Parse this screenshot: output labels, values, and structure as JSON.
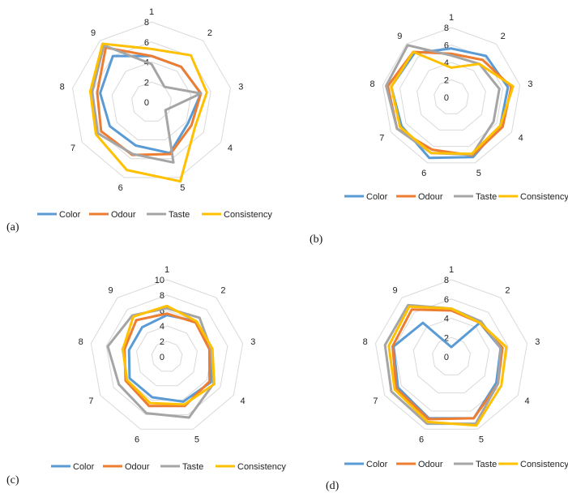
{
  "colors": {
    "Color": "#5b9bd5",
    "Odour": "#ed7d31",
    "Taste": "#a5a5a5",
    "Consistency": "#ffc000",
    "grid": "#d9d9d9"
  },
  "chart_data": [
    {
      "type": "radar",
      "panel_label": "(a)",
      "categories": [
        "1",
        "2",
        "3",
        "4",
        "5",
        "6",
        "7",
        "8",
        "9"
      ],
      "rlim": [
        0,
        8
      ],
      "rticks": [
        "0",
        "2",
        "4",
        "6",
        "8"
      ],
      "legend_position": "bottom",
      "series": [
        {
          "name": "Color",
          "values": [
            4.6,
            4.6,
            5.0,
            4.2,
            5.4,
            4.6,
            4.8,
            5.2,
            6.0
          ]
        },
        {
          "name": "Odour",
          "values": [
            4.6,
            4.6,
            5.0,
            4.6,
            5.5,
            5.6,
            5.8,
            5.5,
            7.1
          ]
        },
        {
          "name": "Taste",
          "values": [
            3.8,
            2.0,
            5.0,
            1.6,
            6.4,
            5.5,
            6.2,
            6.0,
            7.4
          ]
        },
        {
          "name": "Consistency",
          "values": [
            5.3,
            6.1,
            5.6,
            5.0,
            8.4,
            7.2,
            6.4,
            6.2,
            7.6
          ]
        }
      ]
    },
    {
      "type": "radar",
      "panel_label": "(b)",
      "categories": [
        "1",
        "2",
        "3",
        "4",
        "5",
        "6",
        "7",
        "8",
        "9"
      ],
      "rlim": [
        0,
        8
      ],
      "rticks": [
        "0",
        "2",
        "4",
        "6",
        "8"
      ],
      "legend_position": "bottom",
      "series": [
        {
          "name": "Color",
          "values": [
            5.6,
            6.2,
            6.6,
            6.5,
            7.3,
            7.4,
            6.6,
            7.0,
            6.6
          ]
        },
        {
          "name": "Odour",
          "values": [
            5.0,
            5.6,
            7.0,
            6.8,
            7.1,
            6.4,
            7.2,
            7.4,
            6.8
          ]
        },
        {
          "name": "Taste",
          "values": [
            4.8,
            5.0,
            5.6,
            5.6,
            7.0,
            6.8,
            7.2,
            7.6,
            7.8
          ]
        },
        {
          "name": "Consistency",
          "values": [
            3.4,
            5.0,
            7.2,
            6.5,
            6.9,
            6.8,
            6.8,
            7.0,
            6.8
          ]
        }
      ]
    },
    {
      "type": "radar",
      "panel_label": "(c)",
      "categories": [
        "1",
        "2",
        "3",
        "4",
        "5",
        "6",
        "7",
        "8",
        "9"
      ],
      "rlim": [
        0,
        10
      ],
      "rticks": [
        "0",
        "2",
        "4",
        "6",
        "8",
        "10"
      ],
      "legend_position": "bottom",
      "series": [
        {
          "name": "Color",
          "values": [
            5.4,
            6.0,
            5.8,
            6.6,
            6.2,
            5.6,
            5.6,
            5.0,
            5.0
          ]
        },
        {
          "name": "Odour",
          "values": [
            5.6,
            5.8,
            5.6,
            6.4,
            6.8,
            6.8,
            6.2,
            5.6,
            6.2
          ]
        },
        {
          "name": "Taste",
          "values": [
            6.3,
            6.6,
            5.8,
            7.0,
            8.4,
            7.8,
            7.2,
            7.8,
            7.0
          ]
        },
        {
          "name": "Consistency",
          "values": [
            6.6,
            6.0,
            6.0,
            7.1,
            6.6,
            6.4,
            6.0,
            5.8,
            6.8
          ]
        }
      ]
    },
    {
      "type": "radar",
      "panel_label": "(d)",
      "categories": [
        "1",
        "2",
        "3",
        "4",
        "5",
        "6",
        "7",
        "8",
        "9"
      ],
      "rlim": [
        0,
        8
      ],
      "rticks": [
        "0",
        "2",
        "4",
        "6",
        "8"
      ],
      "legend_position": "bottom",
      "series": [
        {
          "name": "Color",
          "values": [
            1.0,
            4.6,
            5.2,
            5.4,
            6.8,
            6.8,
            6.4,
            6.1,
            4.6
          ]
        },
        {
          "name": "Odour",
          "values": [
            4.8,
            4.6,
            5.4,
            5.6,
            6.8,
            6.9,
            6.6,
            6.2,
            6.4
          ]
        },
        {
          "name": "Taste",
          "values": [
            5.0,
            4.8,
            5.2,
            5.6,
            7.4,
            7.4,
            7.2,
            7.0,
            7.0
          ]
        },
        {
          "name": "Consistency",
          "values": [
            5.0,
            4.6,
            5.8,
            6.0,
            7.6,
            7.2,
            6.8,
            6.6,
            6.8
          ]
        }
      ]
    }
  ]
}
